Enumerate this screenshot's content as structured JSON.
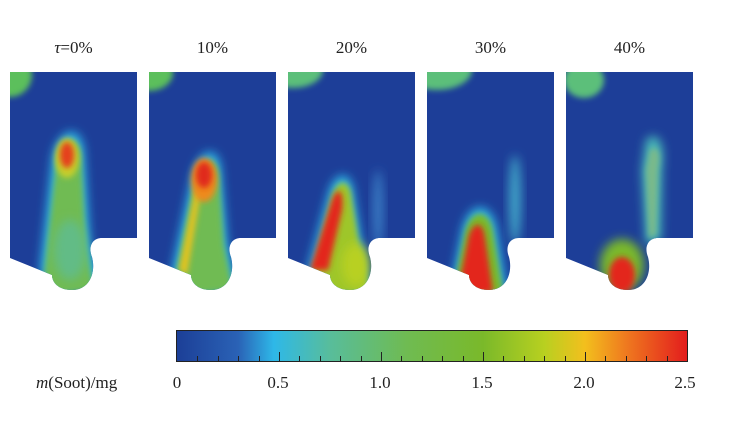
{
  "panels": [
    {
      "label_prefix": "τ",
      "label": "=0%"
    },
    {
      "label": "10%"
    },
    {
      "label": "20%"
    },
    {
      "label": "30%"
    },
    {
      "label": "40%"
    }
  ],
  "colorbar": {
    "label_var": "m",
    "label_rest": "(Soot)/mg",
    "ticks": [
      "0",
      "0.5",
      "1.0",
      "1.5",
      "2.0",
      "2.5"
    ],
    "range": [
      0,
      2.5
    ],
    "colors": [
      "#1c3f97",
      "#2eb8e8",
      "#6fbb52",
      "#7ab92a",
      "#f3bf1d",
      "#e31d1d"
    ]
  }
}
